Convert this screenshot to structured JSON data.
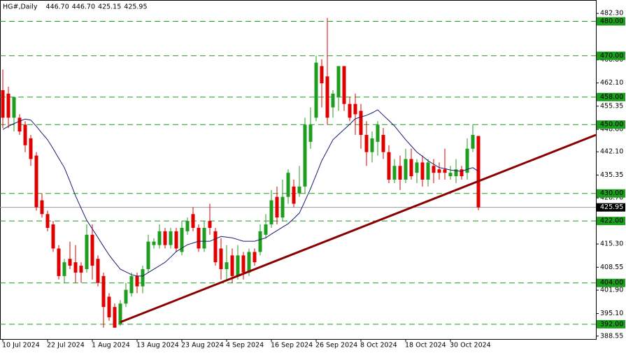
{
  "chart_data": {
    "type": "candlestick",
    "title": "HG#,Daily",
    "ohlc_header": [
      {
        "value": 446.7,
        "label": "446.70"
      },
      {
        "value": 446.7,
        "label": "446.70"
      },
      {
        "value": 425.15,
        "label": "425.15"
      },
      {
        "value": 425.95,
        "label": "425.95"
      }
    ],
    "categories": [
      "10 Jul 2024",
      null,
      null,
      null,
      null,
      null,
      null,
      null,
      "22 Jul 2024",
      null,
      null,
      null,
      null,
      null,
      null,
      null,
      "1 Aug 2024",
      null,
      null,
      null,
      null,
      null,
      null,
      null,
      "13 Aug 2024",
      null,
      null,
      null,
      null,
      null,
      null,
      null,
      "23 Aug 2024",
      null,
      null,
      null,
      null,
      null,
      null,
      null,
      "4 Sep 2024",
      null,
      null,
      null,
      null,
      null,
      null,
      null,
      "16 Sep 2024",
      null,
      null,
      null,
      null,
      null,
      null,
      null,
      "26 Sep 2024",
      null,
      null,
      null,
      null,
      null,
      null,
      null,
      "8 Oct 2024",
      null,
      null,
      null,
      null,
      null,
      null,
      null,
      "18 Oct 2024",
      null,
      null,
      null,
      null,
      null,
      null,
      null,
      "30 Oct 2024",
      null,
      null,
      null,
      null,
      null
    ],
    "open": [
      460,
      459,
      452,
      452,
      450,
      446,
      441,
      428,
      424,
      421,
      414,
      406,
      411,
      410,
      409,
      408,
      418,
      411,
      406,
      400,
      397,
      392,
      398,
      401,
      406,
      403,
      408,
      415,
      415,
      419,
      415,
      419,
      413,
      419,
      424,
      420,
      414,
      422,
      419,
      414,
      408,
      412,
      406,
      412,
      407,
      413,
      413,
      418,
      421,
      429,
      423,
      429,
      432,
      430,
      432,
      445,
      452,
      467,
      464,
      455,
      458,
      467,
      456,
      456,
      454,
      447,
      442,
      445,
      447,
      442,
      434,
      438,
      434,
      440,
      436,
      439,
      434,
      438,
      437,
      437,
      435,
      435,
      437,
      436,
      443,
      446.7
    ],
    "high": [
      466,
      461,
      458,
      453,
      451,
      447,
      442,
      430,
      425,
      422,
      415,
      411,
      416,
      415,
      410,
      421,
      421,
      412,
      407,
      401,
      398,
      399,
      404,
      407,
      407,
      409,
      418,
      417,
      421,
      420,
      420,
      420,
      422,
      423,
      426,
      421,
      422,
      427,
      420,
      417,
      415,
      414,
      415,
      413,
      414,
      414,
      421,
      424,
      431,
      432,
      434,
      437,
      434,
      438,
      452,
      455,
      470,
      469,
      481,
      460,
      467,
      467,
      458,
      459,
      456,
      451,
      448,
      451,
      449,
      444,
      440,
      441,
      443,
      443,
      440,
      441,
      440,
      440,
      439,
      443,
      438,
      440,
      438,
      446,
      450,
      446.7
    ],
    "low": [
      449,
      449,
      448,
      447,
      442,
      438,
      425,
      423,
      419,
      413,
      405,
      404,
      408,
      404,
      404,
      407,
      405,
      403,
      391,
      393,
      391,
      391.5,
      397,
      400,
      401,
      401,
      407,
      414,
      414,
      414,
      414,
      413,
      412,
      418,
      419,
      413,
      413,
      418,
      409,
      405,
      405,
      404,
      405,
      405,
      406,
      409,
      412,
      417,
      420,
      421,
      422,
      427,
      426,
      429,
      430,
      443,
      451,
      455,
      450,
      452,
      454,
      454,
      451,
      447,
      443,
      438,
      439,
      441,
      440,
      433,
      433,
      431,
      433,
      434,
      433,
      432,
      432,
      433,
      434,
      434,
      434,
      433,
      434,
      434,
      442,
      425.15
    ],
    "close": [
      452,
      452,
      458,
      448,
      444,
      440,
      426,
      424,
      420,
      414,
      406,
      410,
      409,
      407,
      407,
      418,
      409,
      404,
      397,
      394,
      391,
      398,
      402,
      406,
      403,
      408,
      416,
      416,
      419,
      415,
      419,
      414,
      420,
      422,
      420,
      414,
      420,
      420,
      410,
      408,
      410,
      406,
      412,
      407,
      413,
      410,
      419,
      421,
      428,
      423,
      429,
      436,
      427,
      432,
      450,
      450,
      468,
      462,
      452,
      459,
      467,
      456,
      452,
      453,
      447,
      442,
      446,
      450,
      442,
      434,
      438,
      434,
      440,
      435,
      439,
      434,
      439,
      436,
      436,
      436,
      436,
      437,
      435,
      443,
      447,
      425.95
    ],
    "up_color": "#1e9e1e",
    "down_color": "#e00000",
    "ma": {
      "color": "#1a1a6e",
      "values": [
        448.6,
        449.5,
        450.3,
        451.0,
        451.6,
        451.3,
        449.5,
        447.5,
        445.6,
        443.0,
        440.2,
        437.5,
        433.5,
        429.3,
        425.7,
        422.2,
        419.7,
        417.2,
        414.6,
        412.1,
        410.0,
        408.0,
        407.2,
        406.4,
        406.0,
        406.0,
        407.0,
        408.0,
        409.0,
        410.0,
        411.5,
        413.1,
        414.1,
        415.1,
        415.6,
        416.1,
        416.1,
        416.1,
        416.8,
        417.5,
        417.3,
        417.1,
        416.6,
        416.1,
        416.1,
        416.1,
        416.6,
        417.1,
        418.2,
        419.2,
        420.2,
        421.2,
        422.7,
        424.3,
        427.8,
        431.4,
        435.4,
        439.5,
        442.5,
        445.6,
        447.1,
        448.6,
        450.1,
        451.7,
        452.2,
        452.7,
        453.4,
        454.3,
        452.7,
        451.2,
        449.6,
        447.6,
        445.6,
        443.8,
        442.0,
        440.8,
        439.5,
        438.5,
        437.5,
        437.2,
        436.8,
        436.6,
        436.4,
        437.0,
        437.5,
        436.4
      ]
    },
    "trendline": {
      "color": "#8b0000",
      "x": [
        21,
        106
      ],
      "y": [
        392.6,
        447.0
      ]
    },
    "levels": [
      {
        "value": 480,
        "label": "480.00"
      },
      {
        "value": 470,
        "label": "470.00"
      },
      {
        "value": 458,
        "label": "458.00"
      },
      {
        "value": 450,
        "label": "450.00"
      },
      {
        "value": 430,
        "label": "430.00"
      },
      {
        "value": 422,
        "label": "422.00"
      },
      {
        "value": 404,
        "label": "404.00"
      },
      {
        "value": 392,
        "label": "392.00"
      }
    ],
    "level_color": "#1e9e1e",
    "last_price": {
      "value": 425.95,
      "label": "425.95"
    },
    "ylim": [
      387.7,
      486.2
    ],
    "yticks": [
      {
        "value": 482.3,
        "label": "482.30"
      },
      {
        "value": 468.8,
        "label": "468.80"
      },
      {
        "value": 462.1,
        "label": "462.10"
      },
      {
        "value": 455.35,
        "label": "455.35"
      },
      {
        "value": 448.6,
        "label": "448.60"
      },
      {
        "value": 442.1,
        "label": "442.10"
      },
      {
        "value": 435.35,
        "label": "435.35"
      },
      {
        "value": 428.7,
        "label": "428.70"
      },
      {
        "value": 415.3,
        "label": "415.30"
      },
      {
        "value": 408.55,
        "label": "408.55"
      },
      {
        "value": 401.9,
        "label": "401.90"
      },
      {
        "value": 395.1,
        "label": "395.10"
      },
      {
        "value": 388.55,
        "label": "388.55"
      }
    ]
  }
}
